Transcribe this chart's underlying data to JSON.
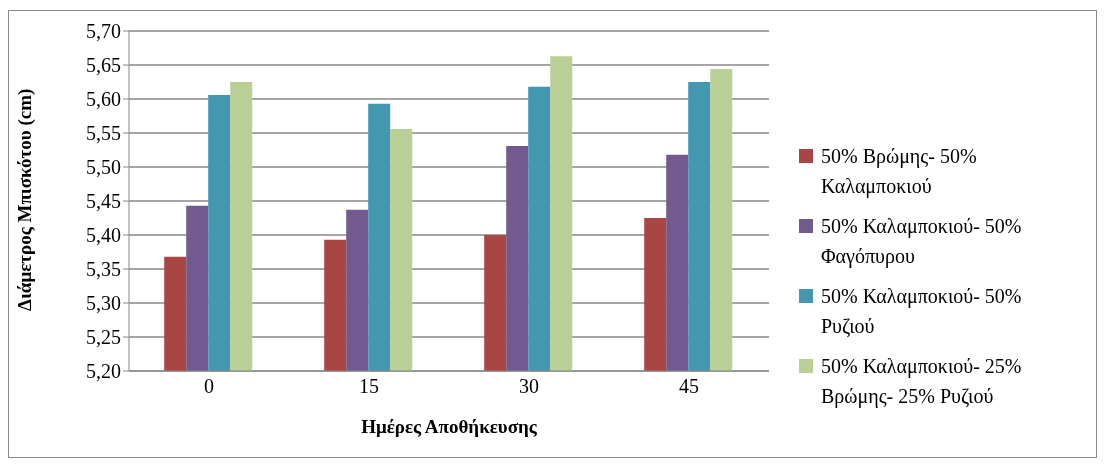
{
  "chart_data": {
    "type": "bar",
    "xlabel": "Ημέρες Αποθήκευσης",
    "ylabel": "Διάμετρος Μπισκότου (cm)",
    "categories": [
      "0",
      "15",
      "30",
      "45"
    ],
    "series": [
      {
        "name": "50% Βρώμης- 50% Καλαμποκιού",
        "color": "#a84644",
        "values": [
          5.368,
          5.393,
          5.4,
          5.425
        ]
      },
      {
        "name": "50% Καλαμποκιού- 50% Φαγόπυρου",
        "color": "#725a8e",
        "values": [
          5.443,
          5.437,
          5.531,
          5.518
        ]
      },
      {
        "name": "50% Καλαμποκιού- 50% Ρυζιού",
        "color": "#4398b0",
        "values": [
          5.606,
          5.593,
          5.618,
          5.625
        ]
      },
      {
        "name": "50% Καλαμποκιού- 25% Βρώμης- 25% Ρυζιού",
        "color": "#bacf95",
        "values": [
          5.625,
          5.556,
          5.663,
          5.644
        ]
      }
    ],
    "ylim": [
      5.2,
      5.7
    ],
    "yticks": [
      {
        "value": 5.2,
        "label": "5,20"
      },
      {
        "value": 5.25,
        "label": "5,25"
      },
      {
        "value": 5.3,
        "label": "5,30"
      },
      {
        "value": 5.35,
        "label": "5,35"
      },
      {
        "value": 5.4,
        "label": "5,40"
      },
      {
        "value": 5.45,
        "label": "5,45"
      },
      {
        "value": 5.5,
        "label": "5,50"
      },
      {
        "value": 5.55,
        "label": "5,55"
      },
      {
        "value": 5.6,
        "label": "5,60"
      },
      {
        "value": 5.65,
        "label": "5,65"
      },
      {
        "value": 5.7,
        "label": "5,70"
      }
    ],
    "grid": "y",
    "legend": "right"
  }
}
